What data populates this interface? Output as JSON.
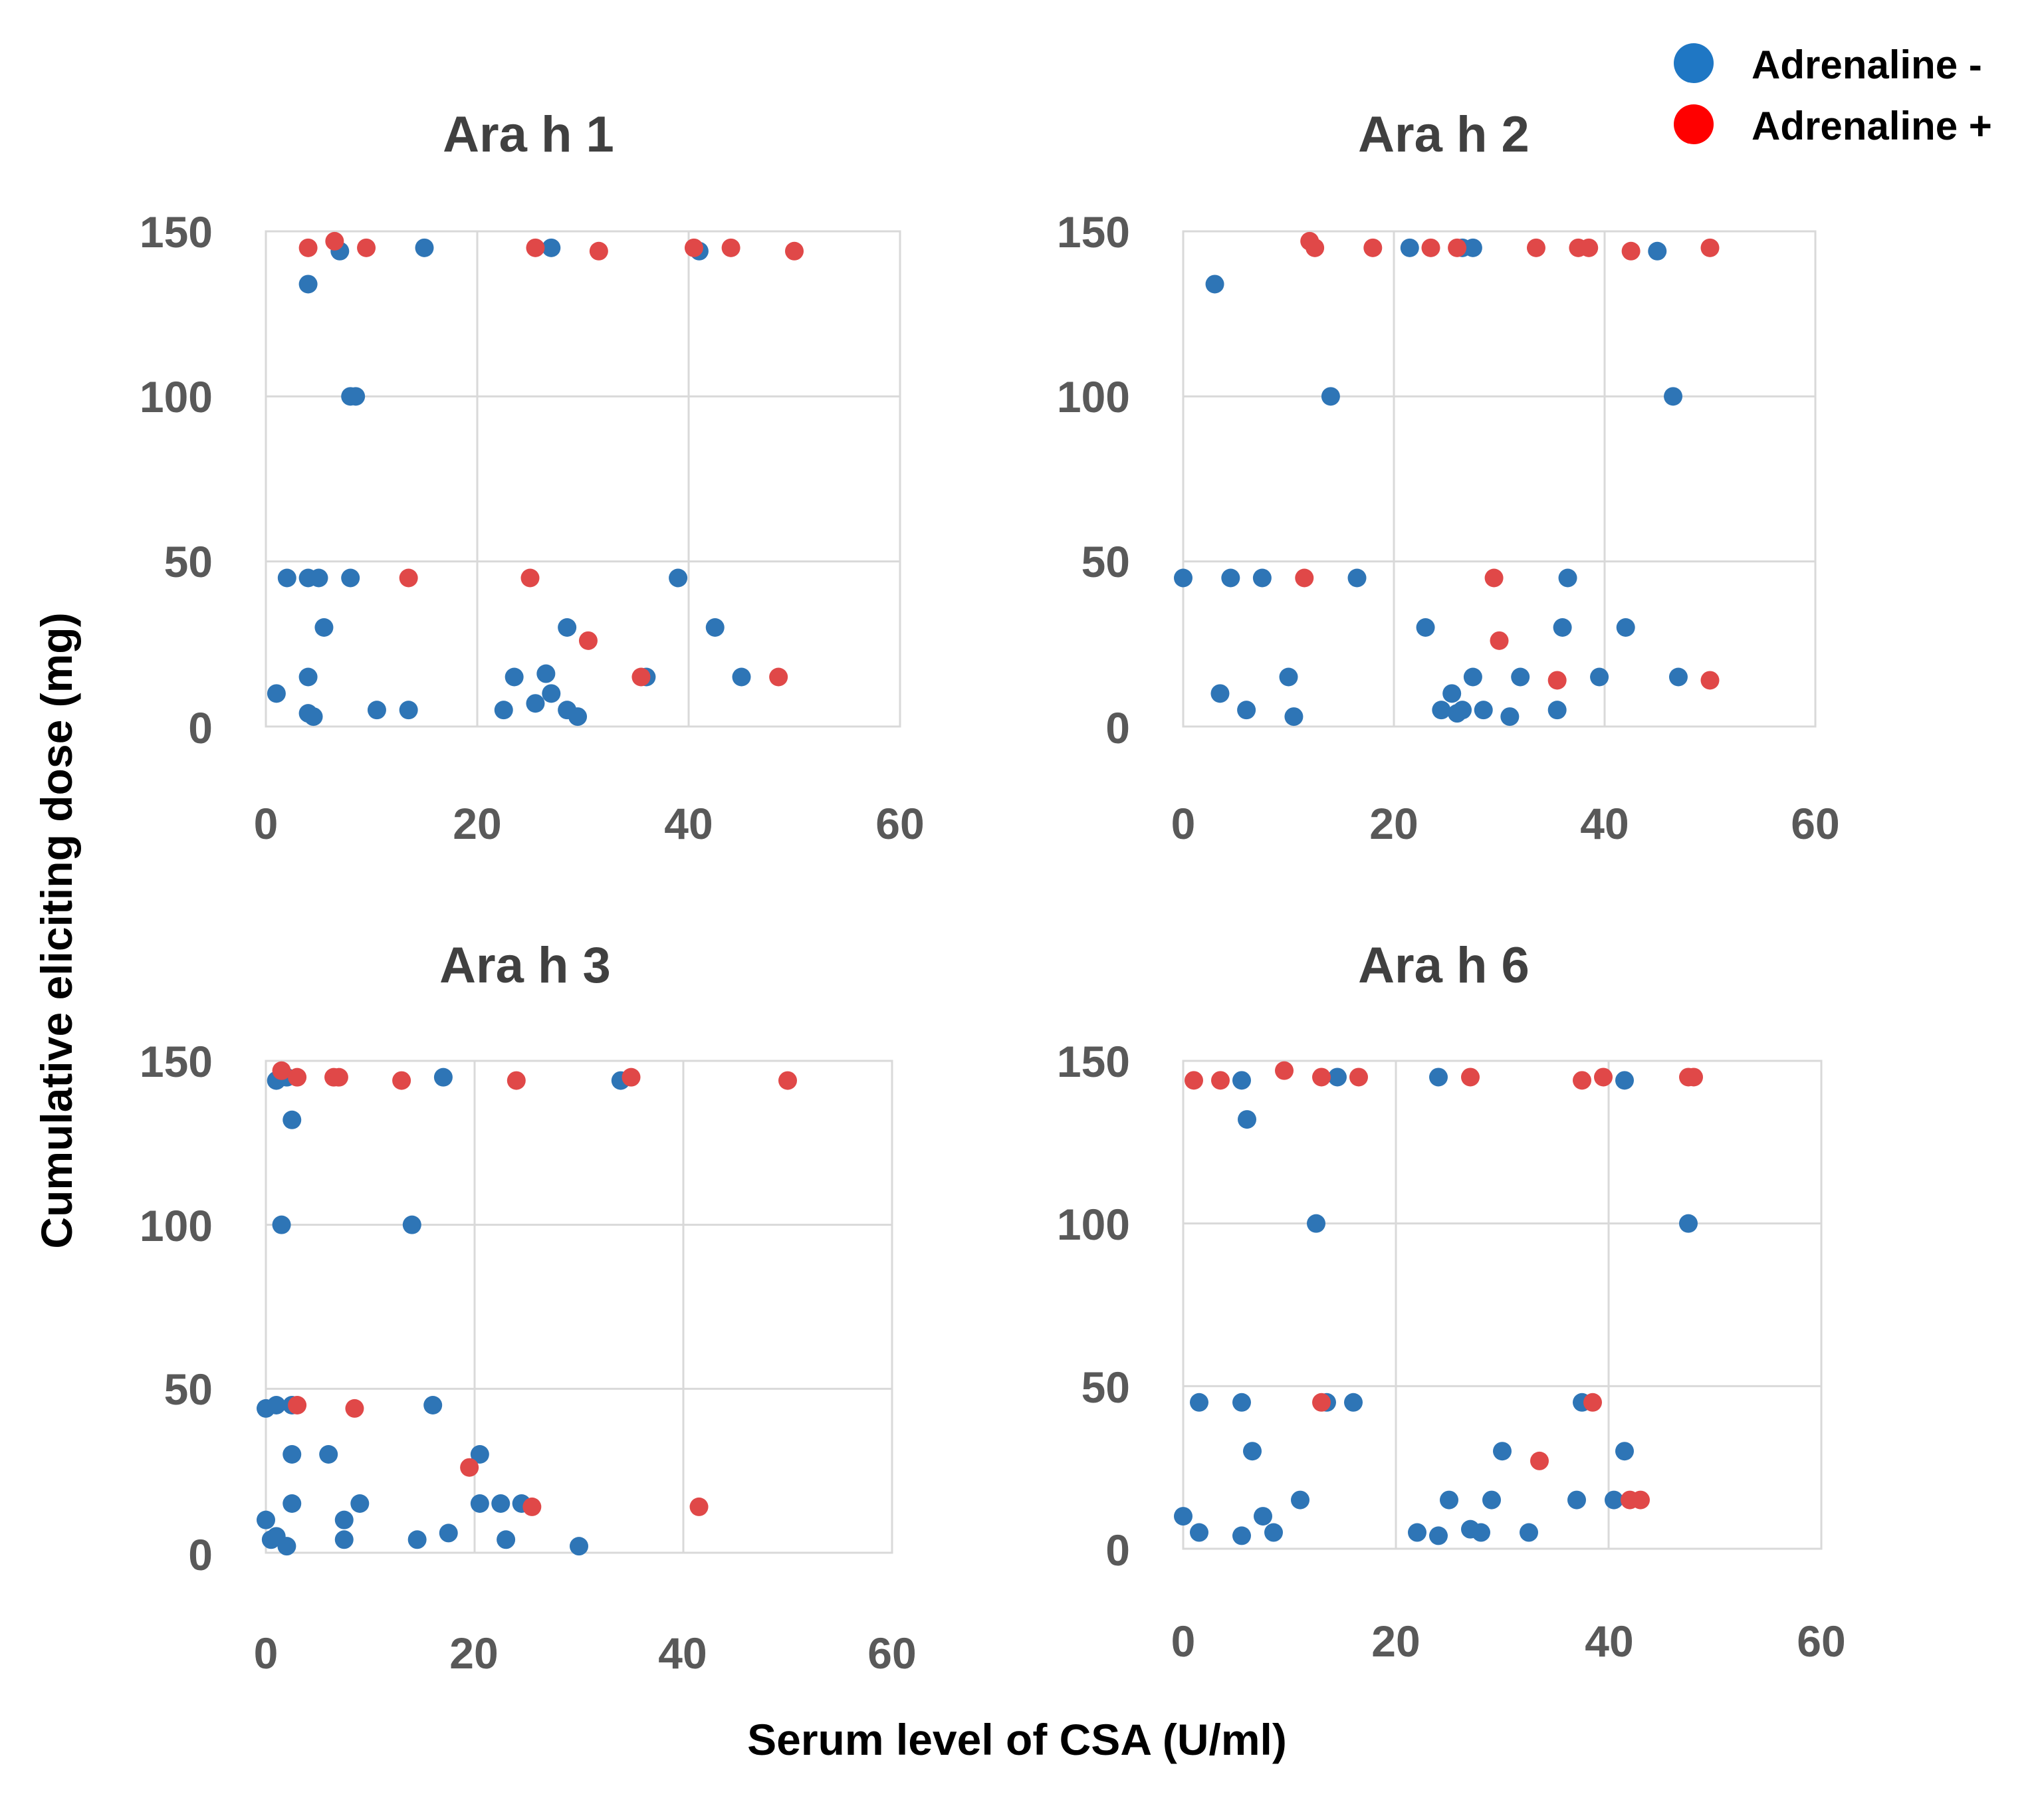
{
  "colors": {
    "adrenaline_neg": "#2E75B6",
    "adrenaline_pos": "#E04848",
    "legend_neg": "#1F77C4",
    "legend_pos": "#FF0000",
    "grid": "#D9D9D9",
    "tick_text": "#595959",
    "title_text": "#404040"
  },
  "legend": {
    "neg_label": "Adrenaline -",
    "pos_label": "Adrenaline +"
  },
  "axes": {
    "ylabel": "Cumulative eliciting dose (mg)",
    "xlabel": "Serum level of CSA (U/ml)"
  },
  "chart_data": [
    {
      "type": "scatter",
      "title": "Ara h 1",
      "xlim": [
        0,
        60
      ],
      "ylim": [
        0,
        150
      ],
      "xticks": [
        "0",
        "20",
        "40",
        "60"
      ],
      "yticks": [
        "0",
        "50",
        "100",
        "150"
      ],
      "series": [
        {
          "name": "Adrenaline -",
          "points": [
            [
              7,
              144
            ],
            [
              15,
              145
            ],
            [
              27,
              145
            ],
            [
              41,
              144
            ],
            [
              4,
              134
            ],
            [
              8,
              100
            ],
            [
              8.5,
              100
            ],
            [
              2,
              45
            ],
            [
              4,
              45
            ],
            [
              5,
              45
            ],
            [
              8,
              45
            ],
            [
              39,
              45
            ],
            [
              5.5,
              30
            ],
            [
              1,
              10
            ],
            [
              4,
              15
            ],
            [
              4,
              4
            ],
            [
              4.5,
              3
            ],
            [
              10.5,
              5
            ],
            [
              13.5,
              5
            ],
            [
              22.5,
              5
            ],
            [
              23.5,
              15
            ],
            [
              26.5,
              16
            ],
            [
              27,
              10
            ],
            [
              25.5,
              7
            ],
            [
              28.5,
              5
            ],
            [
              29.5,
              3
            ],
            [
              28.5,
              30
            ],
            [
              36,
              15
            ],
            [
              42.5,
              30
            ],
            [
              45,
              15
            ]
          ]
        },
        {
          "name": "Adrenaline +",
          "points": [
            [
              4,
              145
            ],
            [
              6.5,
              147
            ],
            [
              9.5,
              145
            ],
            [
              25.5,
              145
            ],
            [
              31.5,
              144
            ],
            [
              40.5,
              145
            ],
            [
              44,
              145
            ],
            [
              50,
              144
            ],
            [
              13.5,
              45
            ],
            [
              25,
              45
            ],
            [
              30.5,
              26
            ],
            [
              35.5,
              15
            ],
            [
              48.5,
              15
            ]
          ]
        }
      ]
    },
    {
      "type": "scatter",
      "title": "Ara h 2",
      "xlim": [
        0,
        60
      ],
      "ylim": [
        0,
        150
      ],
      "xticks": [
        "0",
        "20",
        "40",
        "60"
      ],
      "yticks": [
        "0",
        "50",
        "100",
        "150"
      ],
      "series": [
        {
          "name": "Adrenaline -",
          "points": [
            [
              21.5,
              145
            ],
            [
              26.5,
              145
            ],
            [
              27.5,
              145
            ],
            [
              45,
              144
            ],
            [
              3,
              134
            ],
            [
              14,
              100
            ],
            [
              46.5,
              100
            ],
            [
              0,
              45
            ],
            [
              4.5,
              45
            ],
            [
              7.5,
              45
            ],
            [
              16.5,
              45
            ],
            [
              36.5,
              45
            ],
            [
              23,
              30
            ],
            [
              36,
              30
            ],
            [
              42,
              30
            ],
            [
              3.5,
              10
            ],
            [
              6,
              5
            ],
            [
              10,
              15
            ],
            [
              10.5,
              3
            ],
            [
              24.5,
              5
            ],
            [
              25.5,
              10
            ],
            [
              26,
              4
            ],
            [
              26.5,
              5
            ],
            [
              27.5,
              15
            ],
            [
              28.5,
              5
            ],
            [
              31,
              3
            ],
            [
              32,
              15
            ],
            [
              35.5,
              5
            ],
            [
              39.5,
              15
            ],
            [
              47,
              15
            ]
          ]
        },
        {
          "name": "Adrenaline +",
          "points": [
            [
              12,
              147
            ],
            [
              12.5,
              145
            ],
            [
              18,
              145
            ],
            [
              23.5,
              145
            ],
            [
              26,
              145
            ],
            [
              33.5,
              145
            ],
            [
              37.5,
              145
            ],
            [
              38.5,
              145
            ],
            [
              42.5,
              144
            ],
            [
              50,
              145
            ],
            [
              11.5,
              45
            ],
            [
              29.5,
              45
            ],
            [
              30,
              26
            ],
            [
              35.5,
              14
            ],
            [
              50,
              14
            ]
          ]
        }
      ]
    },
    {
      "type": "scatter",
      "title": "Ara h 3",
      "xlim": [
        0,
        60
      ],
      "ylim": [
        0,
        150
      ],
      "xticks": [
        "0",
        "20",
        "40",
        "60"
      ],
      "yticks": [
        "0",
        "50",
        "100",
        "150"
      ],
      "series": [
        {
          "name": "Adrenaline -",
          "points": [
            [
              1,
              144
            ],
            [
              2,
              145
            ],
            [
              17,
              145
            ],
            [
              34,
              144
            ],
            [
              2.5,
              132
            ],
            [
              1.5,
              100
            ],
            [
              14,
              100
            ],
            [
              0,
              44
            ],
            [
              1,
              45
            ],
            [
              2.5,
              45
            ],
            [
              16,
              45
            ],
            [
              2.5,
              30
            ],
            [
              6,
              30
            ],
            [
              20.5,
              30
            ],
            [
              0,
              10
            ],
            [
              0.5,
              4
            ],
            [
              1,
              5
            ],
            [
              2,
              2
            ],
            [
              2.5,
              15
            ],
            [
              7.5,
              10
            ],
            [
              7.5,
              4
            ],
            [
              9,
              15
            ],
            [
              14.5,
              4
            ],
            [
              17.5,
              6
            ],
            [
              20.5,
              15
            ],
            [
              22.5,
              15
            ],
            [
              23,
              4
            ],
            [
              24.5,
              15
            ],
            [
              30,
              2
            ]
          ]
        },
        {
          "name": "Adrenaline +",
          "points": [
            [
              1.5,
              147
            ],
            [
              3,
              145
            ],
            [
              6.5,
              145
            ],
            [
              7,
              145
            ],
            [
              13,
              144
            ],
            [
              24,
              144
            ],
            [
              35,
              145
            ],
            [
              50,
              144
            ],
            [
              3,
              45
            ],
            [
              8.5,
              44
            ],
            [
              19.5,
              26
            ],
            [
              25.5,
              14
            ],
            [
              41.5,
              14
            ]
          ]
        }
      ]
    },
    {
      "type": "scatter",
      "title": "Ara h 6",
      "xlim": [
        0,
        60
      ],
      "ylim": [
        0,
        150
      ],
      "xticks": [
        "0",
        "20",
        "40",
        "60"
      ],
      "yticks": [
        "0",
        "50",
        "100",
        "150"
      ],
      "series": [
        {
          "name": "Adrenaline -",
          "points": [
            [
              5.5,
              144
            ],
            [
              14.5,
              145
            ],
            [
              24,
              145
            ],
            [
              41.5,
              144
            ],
            [
              6,
              132
            ],
            [
              12.5,
              100
            ],
            [
              47.5,
              100
            ],
            [
              1.5,
              45
            ],
            [
              5.5,
              45
            ],
            [
              13.5,
              45
            ],
            [
              16,
              45
            ],
            [
              37.5,
              45
            ],
            [
              6.5,
              30
            ],
            [
              30,
              30
            ],
            [
              41.5,
              30
            ],
            [
              0,
              10
            ],
            [
              1.5,
              5
            ],
            [
              5.5,
              4
            ],
            [
              7.5,
              10
            ],
            [
              8.5,
              5
            ],
            [
              11,
              15
            ],
            [
              22,
              5
            ],
            [
              24,
              4
            ],
            [
              25,
              15
            ],
            [
              27,
              6
            ],
            [
              28,
              5
            ],
            [
              29,
              15
            ],
            [
              32.5,
              5
            ],
            [
              37,
              15
            ],
            [
              40.5,
              15
            ]
          ]
        },
        {
          "name": "Adrenaline +",
          "points": [
            [
              1,
              144
            ],
            [
              3.5,
              144
            ],
            [
              9.5,
              147
            ],
            [
              13,
              145
            ],
            [
              16.5,
              145
            ],
            [
              27,
              145
            ],
            [
              37.5,
              144
            ],
            [
              39.5,
              145
            ],
            [
              47.5,
              145
            ],
            [
              48,
              145
            ],
            [
              13,
              45
            ],
            [
              38.5,
              45
            ],
            [
              33.5,
              27
            ],
            [
              42,
              15
            ],
            [
              43,
              15
            ]
          ]
        }
      ]
    }
  ]
}
